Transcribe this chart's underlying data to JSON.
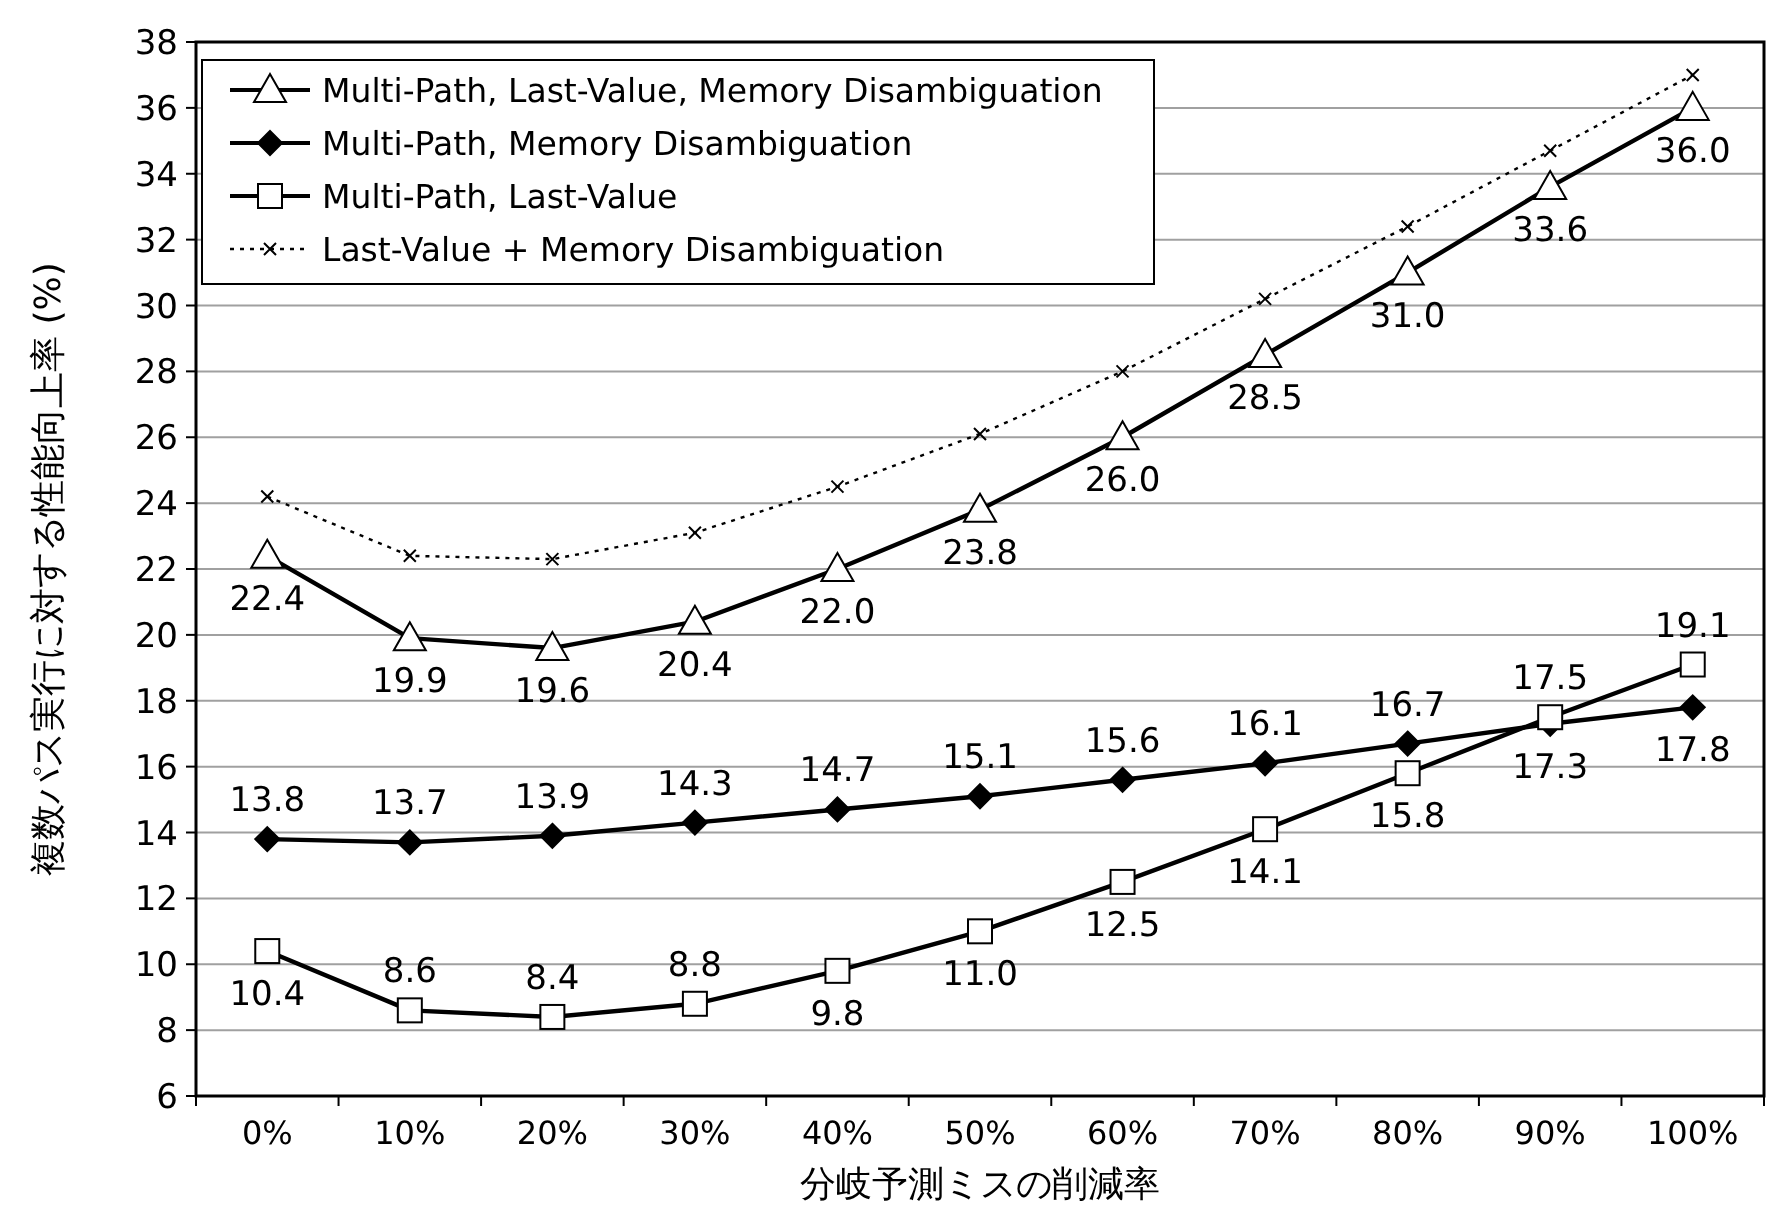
{
  "chart_data": {
    "type": "line",
    "xlabel": "分岐予測ミスの削減率",
    "ylabel": "複数パス実行に対する性能向上率 (%)",
    "categories": [
      "0%",
      "10%",
      "20%",
      "30%",
      "40%",
      "50%",
      "60%",
      "70%",
      "80%",
      "90%",
      "100%"
    ],
    "ylim": [
      6,
      38
    ],
    "yticks": [
      6,
      8,
      10,
      12,
      14,
      16,
      18,
      20,
      22,
      24,
      26,
      28,
      30,
      32,
      34,
      36,
      38
    ],
    "grid": "y",
    "legend": "top left",
    "series": [
      {
        "name": "Multi-Path, Last-Value, Memory Disambiguation",
        "color": "#000000",
        "marker": "triangle",
        "line_style": "solid",
        "values": [
          22.4,
          19.9,
          19.6,
          20.4,
          22.0,
          23.8,
          26.0,
          28.5,
          31.0,
          33.6,
          36.0
        ],
        "value_labels": [
          "22.4",
          "19.9",
          "19.6",
          "20.4",
          "22.0",
          "23.8",
          "26.0",
          "28.5",
          "31.0",
          "33.6",
          "36.0"
        ]
      },
      {
        "name": "Multi-Path, Memory Disambiguation",
        "color": "#000000",
        "marker": "diamond",
        "line_style": "solid",
        "values": [
          13.8,
          13.7,
          13.9,
          14.3,
          14.7,
          15.1,
          15.6,
          16.1,
          16.7,
          17.3,
          17.8
        ],
        "value_labels": [
          "13.8",
          "13.7",
          "13.9",
          "14.3",
          "14.7",
          "15.1",
          "15.6",
          "16.1",
          "16.7",
          "17.3",
          "17.8"
        ]
      },
      {
        "name": "Multi-Path, Last-Value",
        "color": "#000000",
        "marker": "square",
        "line_style": "solid",
        "values": [
          10.4,
          8.6,
          8.4,
          8.8,
          9.8,
          11.0,
          12.5,
          14.1,
          15.8,
          17.5,
          19.1
        ],
        "value_labels": [
          "10.4",
          "8.6",
          "8.4",
          "8.8",
          "9.8",
          "11.0",
          "12.5",
          "14.1",
          "15.8",
          "17.5",
          "19.1"
        ]
      },
      {
        "name": "Last-Value + Memory Disambiguation",
        "color": "#000000",
        "marker": "cross",
        "line_style": "dotted",
        "values": [
          24.2,
          22.4,
          22.3,
          23.1,
          24.5,
          26.1,
          28.0,
          30.2,
          32.4,
          34.7,
          37.0
        ]
      }
    ]
  }
}
